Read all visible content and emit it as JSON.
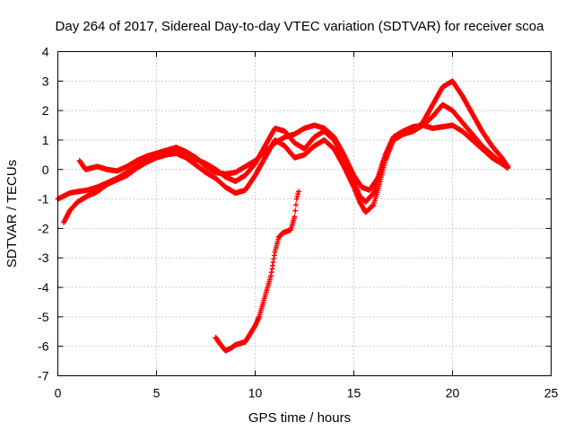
{
  "chart_data": {
    "type": "scatter",
    "title": "Day 264 of 2017, Sidereal Day-to-day VTEC variation (SDTVAR) for receiver scoa",
    "xlabel": "GPS time / hours",
    "ylabel": "SDTVAR / TECUs",
    "xlim": [
      0,
      25
    ],
    "ylim": [
      -7,
      4
    ],
    "xticks": [
      "0",
      "5",
      "10",
      "15",
      "20",
      "25"
    ],
    "yticks": [
      "-7",
      "-6",
      "-5",
      "-4",
      "-3",
      "-2",
      "-1",
      "0",
      "1",
      "2",
      "3",
      "4"
    ],
    "grid": true,
    "marker": "plus",
    "color": "#ff0000",
    "series": [
      {
        "x": [
          0.0,
          0.3,
          0.6,
          1.0,
          1.5,
          2.0,
          2.5,
          3.0,
          3.5,
          4.0,
          4.5,
          5.0,
          5.5,
          6.0,
          6.5,
          7.0,
          7.5,
          8.0,
          8.5,
          9.0,
          9.5,
          10.0,
          10.5,
          11.0,
          11.5,
          12.0,
          12.5,
          13.0,
          13.5,
          14.0,
          14.5,
          15.0,
          15.3,
          15.6,
          16.0,
          16.3,
          16.6,
          17.0,
          17.5,
          18.0,
          18.5,
          19.0,
          19.5,
          20.0,
          20.5,
          21.0,
          21.5,
          22.0,
          22.5,
          22.8
        ],
        "y": [
          -1.0,
          -0.9,
          -0.8,
          -0.75,
          -0.7,
          -0.6,
          -0.45,
          -0.3,
          -0.1,
          0.1,
          0.3,
          0.45,
          0.55,
          0.7,
          0.6,
          0.35,
          0.2,
          0.0,
          -0.25,
          -0.4,
          -0.2,
          0.2,
          0.8,
          1.4,
          1.3,
          0.9,
          0.7,
          1.1,
          1.3,
          1.0,
          0.4,
          -0.4,
          -0.9,
          -1.1,
          -0.8,
          -0.2,
          0.5,
          1.0,
          1.2,
          1.3,
          1.5,
          1.8,
          2.2,
          2.0,
          1.6,
          1.2,
          0.8,
          0.5,
          0.2,
          0.1
        ]
      },
      {
        "x": [
          0.3,
          0.6,
          1.0,
          1.5,
          2.0,
          2.5,
          3.0,
          3.5,
          4.0,
          4.5,
          5.0,
          5.5,
          6.0,
          6.5,
          7.0,
          7.5,
          8.0,
          8.5,
          9.0,
          9.5,
          10.0,
          10.5,
          11.0,
          11.5,
          12.0,
          12.5,
          13.0,
          13.5,
          14.0,
          14.5,
          15.0,
          15.3,
          15.6,
          16.0,
          16.3,
          16.6,
          17.0,
          17.5,
          18.0,
          18.5,
          19.0,
          19.5,
          20.0,
          20.5,
          21.0,
          21.5,
          22.0,
          22.5,
          22.8
        ],
        "y": [
          -1.8,
          -1.4,
          -1.1,
          -0.9,
          -0.75,
          -0.5,
          -0.35,
          -0.2,
          0.05,
          0.25,
          0.4,
          0.5,
          0.55,
          0.4,
          0.15,
          -0.1,
          -0.3,
          -0.6,
          -0.8,
          -0.7,
          -0.2,
          0.4,
          1.0,
          0.8,
          0.4,
          0.5,
          0.8,
          1.0,
          0.7,
          0.1,
          -0.6,
          -1.1,
          -1.45,
          -1.2,
          -0.5,
          0.3,
          1.0,
          1.2,
          1.3,
          1.6,
          2.2,
          2.8,
          3.0,
          2.5,
          1.9,
          1.3,
          0.8,
          0.4,
          0.1
        ]
      },
      {
        "x": [
          1.1,
          1.4,
          2.0,
          2.5,
          3.0,
          3.5,
          4.0,
          4.5,
          5.0,
          5.5,
          6.0,
          6.5,
          7.0,
          7.5,
          8.0,
          8.5,
          9.0,
          9.5,
          10.0,
          10.5,
          11.0,
          11.5,
          12.0,
          12.5,
          13.0,
          13.5,
          14.0,
          14.5,
          15.0,
          15.4,
          15.8,
          16.2,
          16.6,
          17.0,
          17.5,
          18.0,
          18.5,
          19.0,
          19.5,
          20.0,
          20.5,
          21.0,
          21.5,
          22.0,
          22.5,
          22.8
        ],
        "y": [
          0.3,
          0.0,
          0.1,
          0.0,
          -0.05,
          0.1,
          0.3,
          0.45,
          0.55,
          0.65,
          0.75,
          0.6,
          0.4,
          0.1,
          -0.1,
          -0.15,
          -0.1,
          0.1,
          0.3,
          0.6,
          0.9,
          1.1,
          1.2,
          1.4,
          1.5,
          1.4,
          1.1,
          0.5,
          -0.2,
          -0.6,
          -0.7,
          -0.3,
          0.5,
          1.1,
          1.3,
          1.45,
          1.5,
          1.4,
          1.45,
          1.5,
          1.3,
          1.0,
          0.7,
          0.4,
          0.2,
          0.05
        ]
      },
      {
        "x": [
          8.0,
          8.2,
          8.5,
          8.8,
          9.0,
          9.5,
          10.0,
          10.2,
          10.5,
          10.8,
          11.0,
          11.2,
          11.4,
          11.6,
          11.8,
          12.0,
          12.1,
          12.2
        ],
        "y": [
          -5.7,
          -5.9,
          -6.15,
          -6.05,
          -5.95,
          -5.85,
          -5.3,
          -5.0,
          -4.3,
          -3.6,
          -2.8,
          -2.3,
          -2.15,
          -2.1,
          -2.05,
          -1.6,
          -1.0,
          -0.75
        ]
      }
    ]
  }
}
